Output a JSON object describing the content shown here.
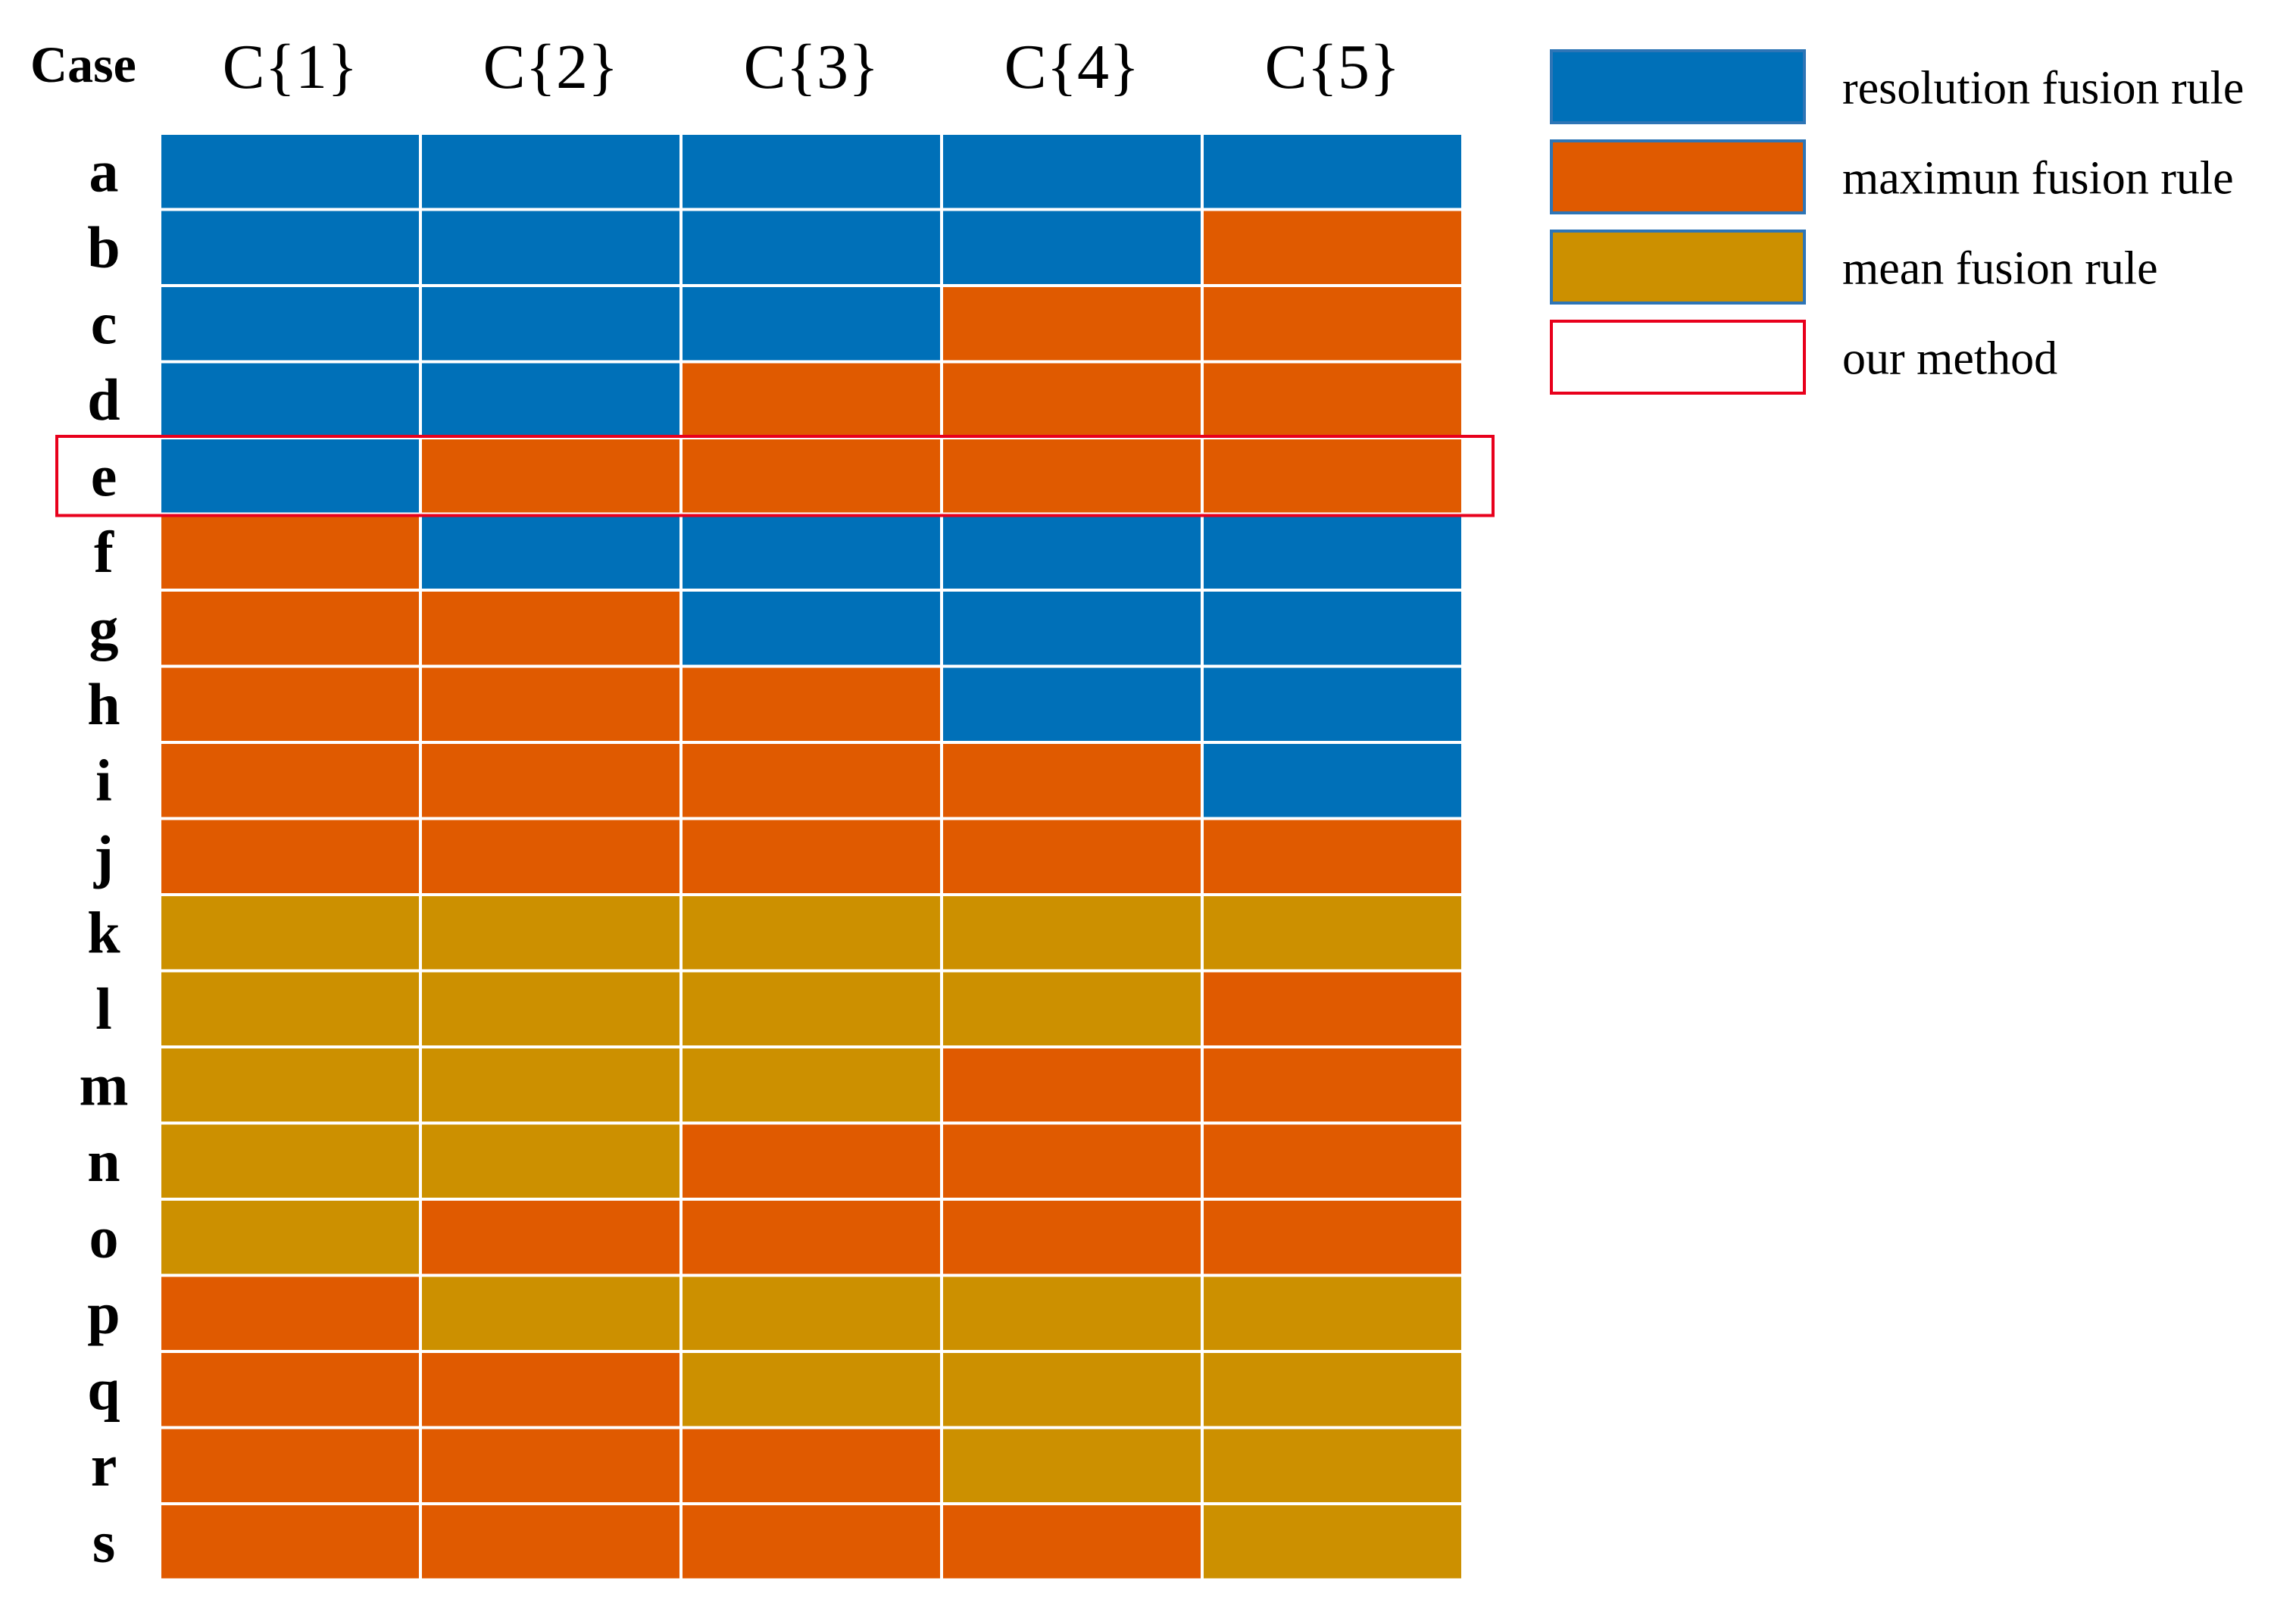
{
  "chart_data": {
    "type": "table",
    "row_header": "Case",
    "columns": [
      "C{1}",
      "C{2}",
      "C{3}",
      "C{4}",
      "C{5}"
    ],
    "rows": [
      "a",
      "b",
      "c",
      "d",
      "e",
      "f",
      "g",
      "h",
      "i",
      "j",
      "k",
      "l",
      "m",
      "n",
      "o",
      "p",
      "q",
      "r",
      "s"
    ],
    "categories": {
      "R": {
        "label": "resolution fusion rule",
        "color": "#0070B8"
      },
      "M": {
        "label": "maximun fusion rule",
        "color": "#E05A00"
      },
      "A": {
        "label": "mean fusion rule",
        "color": "#CC9000"
      }
    },
    "legend_order": [
      "R",
      "M",
      "A"
    ],
    "cells": [
      [
        "R",
        "R",
        "R",
        "R",
        "R"
      ],
      [
        "R",
        "R",
        "R",
        "R",
        "M"
      ],
      [
        "R",
        "R",
        "R",
        "M",
        "M"
      ],
      [
        "R",
        "R",
        "M",
        "M",
        "M"
      ],
      [
        "R",
        "M",
        "M",
        "M",
        "M"
      ],
      [
        "M",
        "R",
        "R",
        "R",
        "R"
      ],
      [
        "M",
        "M",
        "R",
        "R",
        "R"
      ],
      [
        "M",
        "M",
        "M",
        "R",
        "R"
      ],
      [
        "M",
        "M",
        "M",
        "M",
        "R"
      ],
      [
        "M",
        "M",
        "M",
        "M",
        "M"
      ],
      [
        "A",
        "A",
        "A",
        "A",
        "A"
      ],
      [
        "A",
        "A",
        "A",
        "A",
        "M"
      ],
      [
        "A",
        "A",
        "A",
        "M",
        "M"
      ],
      [
        "A",
        "A",
        "M",
        "M",
        "M"
      ],
      [
        "A",
        "M",
        "M",
        "M",
        "M"
      ],
      [
        "M",
        "A",
        "A",
        "A",
        "A"
      ],
      [
        "M",
        "M",
        "A",
        "A",
        "A"
      ],
      [
        "M",
        "M",
        "M",
        "A",
        "A"
      ],
      [
        "M",
        "M",
        "M",
        "M",
        "A"
      ]
    ],
    "highlight": {
      "row": "e",
      "label": "our method",
      "color": "#E8001C"
    }
  }
}
